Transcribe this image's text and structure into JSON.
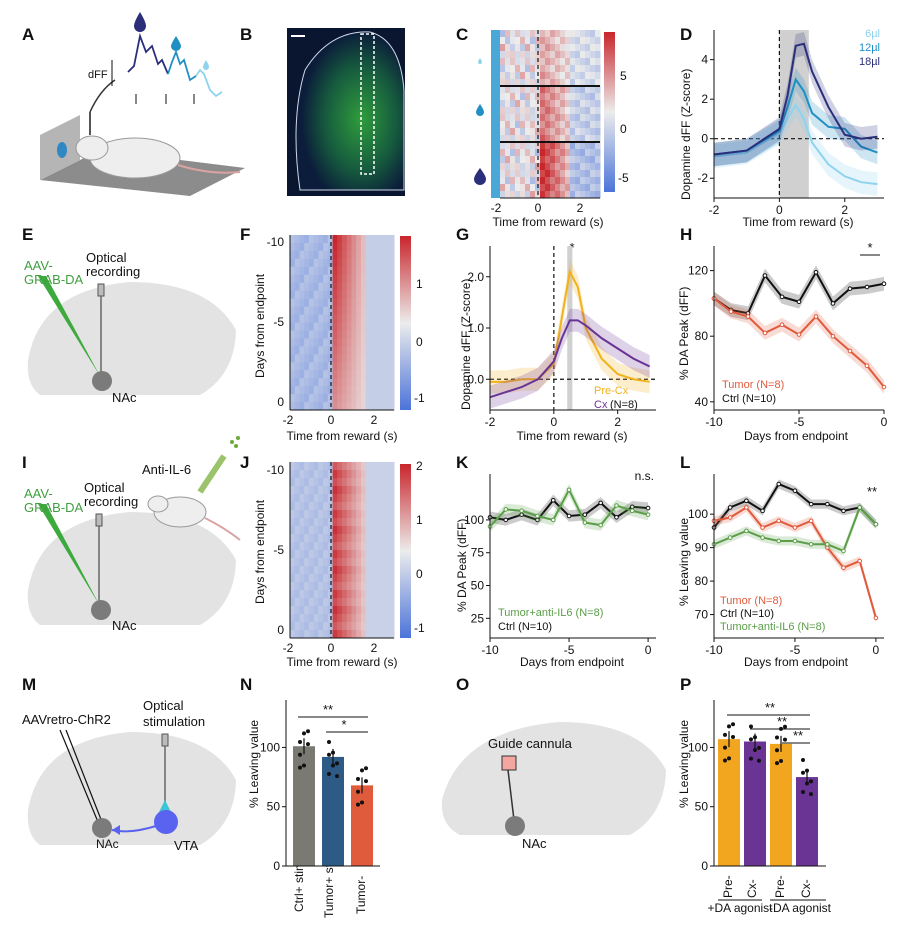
{
  "panels": {
    "A": {
      "letter": "A",
      "dff_label": "dFF"
    },
    "B": {
      "letter": "B"
    },
    "C": {
      "letter": "C",
      "xlabel": "Time from reward (s)",
      "xticks": [
        "-2",
        "0",
        "2"
      ],
      "cbar_ticks": [
        "5",
        "0",
        "-5"
      ]
    },
    "D": {
      "letter": "D",
      "ylabel": "Dopamine dFF (Z-score)",
      "xlabel": "Time from reward (s)",
      "legend": [
        "6µl",
        "12µl",
        "18µl"
      ],
      "xticks": [
        "-2",
        "0",
        "2"
      ],
      "yticks": [
        "4",
        "2",
        "0",
        "-2"
      ]
    },
    "E": {
      "letter": "E",
      "virus": "AAV-\nGRAB-DA",
      "virus_l1": "AAV-",
      "virus_l2": "GRAB-DA",
      "optical_l1": "Optical",
      "optical_l2": "recording",
      "region": "NAc"
    },
    "F": {
      "letter": "F",
      "ylabel": "Days from endpoint",
      "xlabel": "Time from reward (s)",
      "yticks": [
        "-10",
        "-5",
        "0"
      ],
      "xticks": [
        "-2",
        "0",
        "2"
      ],
      "cbar_ticks": [
        "1",
        "0",
        "-1"
      ]
    },
    "G": {
      "letter": "G",
      "ylabel": "Dopamine dFF (Z-score)",
      "xlabel": "Time from reward (s)",
      "legend_precx": "Pre-Cx",
      "legend_cx": "Cx",
      "legend_n": "(N=8)",
      "star": "*",
      "yticks": [
        "2.0",
        "1.0",
        "0.0"
      ],
      "xticks": [
        "-2",
        "0",
        "2"
      ]
    },
    "H": {
      "letter": "H",
      "ylabel": "% DA Peak (dFF)",
      "xlabel": "Days from endpoint",
      "legend_tumor": "Tumor (N=8)",
      "legend_ctrl": "Ctrl (N=10)",
      "star": "*",
      "yticks": [
        "120",
        "80",
        "40"
      ],
      "xticks": [
        "-10",
        "-5",
        "0"
      ]
    },
    "I": {
      "letter": "I",
      "virus_l1": "AAV-",
      "virus_l2": "GRAB-DA",
      "optical_l1": "Optical",
      "optical_l2": "recording",
      "drug": "Anti-IL-6",
      "region": "NAc"
    },
    "J": {
      "letter": "J",
      "ylabel": "Days from endpoint",
      "xlabel": "Time from reward (s)",
      "yticks": [
        "-10",
        "-5",
        "0"
      ],
      "xticks": [
        "-2",
        "0",
        "2"
      ],
      "cbar_ticks": [
        "2",
        "1",
        "0",
        "-1"
      ]
    },
    "K": {
      "letter": "K",
      "ylabel": "% DA Peak (dFF)",
      "xlabel": "Days from endpoint",
      "legend_il6": "Tumor+anti-IL6 (N=8)",
      "legend_ctrl": "Ctrl (N=10)",
      "ns": "n.s.",
      "yticks": [
        "100",
        "75",
        "50",
        "25"
      ],
      "xticks": [
        "-10",
        "-5",
        "0"
      ]
    },
    "L": {
      "letter": "L",
      "ylabel": "% Leaving value",
      "xlabel": "Days from endpoint",
      "legend_tumor": "Tumor (N=8)",
      "legend_ctrl": "Ctrl (N=10)",
      "legend_il6": "Tumor+anti-IL6 (N=8)",
      "star": "**",
      "yticks": [
        "100",
        "90",
        "80",
        "70"
      ],
      "xticks": [
        "-10",
        "-5",
        "0"
      ]
    },
    "M": {
      "letter": "M",
      "virus": "AAVretro-ChR2",
      "optical_l1": "Optical",
      "optical_l2": "stimulation",
      "region1": "NAc",
      "region2": "VTA"
    },
    "N": {
      "letter": "N",
      "ylabel": "% Leaving value",
      "yticks": [
        "100",
        "50",
        "0"
      ],
      "stars": [
        "**",
        "*"
      ]
    },
    "O": {
      "letter": "O",
      "cannula": "Guide cannula",
      "region": "NAc"
    },
    "P": {
      "letter": "P",
      "ylabel": "% Leaving value",
      "yticks": [
        "100",
        "50",
        "0"
      ],
      "stars": [
        "**",
        "**",
        "**"
      ],
      "group1": "+DA agonist",
      "group2": "-DA agonist"
    }
  },
  "chart_data": [
    {
      "panel": "D",
      "type": "line",
      "x": [
        -2,
        -1,
        0,
        0.25,
        0.5,
        0.75,
        1,
        1.5,
        2,
        2.5,
        3
      ],
      "series": [
        {
          "name": "6µl",
          "color": "#8fd3ee",
          "values": [
            -0.9,
            -0.7,
            0.3,
            1.0,
            1.7,
            1.0,
            -0.2,
            -1.3,
            -1.9,
            -2.2,
            -2.3
          ]
        },
        {
          "name": "12µl",
          "color": "#1f8fc4",
          "values": [
            -0.8,
            -0.6,
            0.4,
            1.6,
            3.0,
            2.4,
            1.3,
            0.6,
            0.5,
            -0.4,
            -0.7
          ]
        },
        {
          "name": "18µl",
          "color": "#2b2f7a",
          "values": [
            -0.8,
            -0.6,
            0.5,
            2.2,
            4.7,
            4.8,
            3.4,
            1.6,
            0.2,
            0.0,
            0.1
          ]
        }
      ],
      "xlim": [
        -2,
        3.2
      ],
      "ylim": [
        -3,
        5.5
      ],
      "xlabel": "Time from reward (s)",
      "ylabel": "Dopamine dFF (Z-score)"
    },
    {
      "panel": "G",
      "type": "line",
      "x": [
        -2,
        -1.5,
        -1,
        -0.5,
        0,
        0.25,
        0.5,
        0.75,
        1,
        1.5,
        2,
        2.5,
        3
      ],
      "series": [
        {
          "name": "Pre-Cx",
          "color": "#f2b21c",
          "values": [
            -0.05,
            -0.05,
            0.0,
            0.0,
            0.3,
            1.2,
            2.1,
            1.8,
            1.0,
            0.4,
            0.1,
            0.0,
            -0.05
          ]
        },
        {
          "name": "Cx",
          "color": "#6a3494",
          "values": [
            -0.35,
            -0.25,
            -0.15,
            0.0,
            0.35,
            0.8,
            1.15,
            1.15,
            1.05,
            0.8,
            0.6,
            0.4,
            0.25
          ]
        }
      ],
      "xlim": [
        -2,
        3.2
      ],
      "ylim": [
        -0.6,
        2.6
      ],
      "xlabel": "Time from reward (s)",
      "ylabel": "Dopamine dFF (Z-score)"
    },
    {
      "panel": "H",
      "type": "line",
      "x": [
        -10,
        -9,
        -8,
        -7,
        -6,
        -5,
        -4,
        -3,
        -2,
        -1,
        0
      ],
      "series": [
        {
          "name": "Ctrl (N=10)",
          "color": "#111111",
          "values": [
            103,
            96,
            94,
            117,
            104,
            101,
            119,
            100,
            109,
            110,
            112
          ]
        },
        {
          "name": "Tumor (N=8)",
          "color": "#e05a3c",
          "values": [
            103,
            95,
            92,
            82,
            87,
            81,
            92,
            80,
            71,
            62,
            49
          ]
        }
      ],
      "xlim": [
        -10,
        0
      ],
      "ylim": [
        35,
        135
      ],
      "xlabel": "Days from endpoint",
      "ylabel": "% DA Peak (dFF)"
    },
    {
      "panel": "K",
      "type": "line",
      "x": [
        -10,
        -9,
        -8,
        -7,
        -6,
        -5,
        -4,
        -3,
        -2,
        -1,
        0
      ],
      "series": [
        {
          "name": "Ctrl (N=10)",
          "color": "#111111",
          "values": [
            102,
            100,
            104,
            100,
            115,
            103,
            104,
            113,
            102,
            110,
            109
          ]
        },
        {
          "name": "Tumor+anti-IL6 (N=8)",
          "color": "#5a9e48",
          "values": [
            95,
            108,
            107,
            103,
            100,
            123,
            98,
            96,
            111,
            107,
            104
          ]
        }
      ],
      "xlim": [
        -10,
        0.5
      ],
      "ylim": [
        10,
        135
      ],
      "xlabel": "Days from endpoint",
      "ylabel": "% DA Peak (dFF)"
    },
    {
      "panel": "L",
      "type": "line",
      "x": [
        -10,
        -9,
        -8,
        -7,
        -6,
        -5,
        -4,
        -3,
        -2,
        -1,
        0
      ],
      "series": [
        {
          "name": "Ctrl (N=10)",
          "color": "#111111",
          "values": [
            96,
            102,
            104,
            101,
            109,
            107,
            103,
            103,
            101,
            102,
            97
          ]
        },
        {
          "name": "Tumor (N=8)",
          "color": "#e05a3c",
          "values": [
            98,
            99,
            102,
            96,
            98,
            96,
            98,
            90,
            84,
            86,
            69
          ]
        },
        {
          "name": "Tumor+anti-IL6 (N=8)",
          "color": "#5a9e48",
          "values": [
            91,
            93,
            95,
            93,
            92,
            92,
            91,
            91,
            89,
            102,
            97
          ]
        }
      ],
      "xlim": [
        -10,
        0.5
      ],
      "ylim": [
        63,
        112
      ],
      "xlabel": "Days from endpoint",
      "ylabel": "% Leaving value"
    },
    {
      "panel": "N",
      "type": "bar",
      "categories": [
        "Ctrl+ stim",
        "Tumor+ stim",
        "Tumor-"
      ],
      "values": [
        101,
        92,
        68
      ],
      "colors": [
        "#7a7a72",
        "#2e5a86",
        "#e05a3c"
      ],
      "ylim": [
        0,
        140
      ],
      "ylabel": "% Leaving value"
    },
    {
      "panel": "P",
      "type": "bar",
      "categories": [
        "Pre-",
        "Cx-",
        "Pre-",
        "Cx-"
      ],
      "values": [
        107,
        105,
        103,
        75
      ],
      "colors": [
        "#f2a51e",
        "#6a3494",
        "#f2a51e",
        "#6a3494"
      ],
      "groups": [
        "+DA agonist",
        "-DA agonist"
      ],
      "ylim": [
        0,
        140
      ],
      "ylabel": "% Leaving value"
    }
  ]
}
